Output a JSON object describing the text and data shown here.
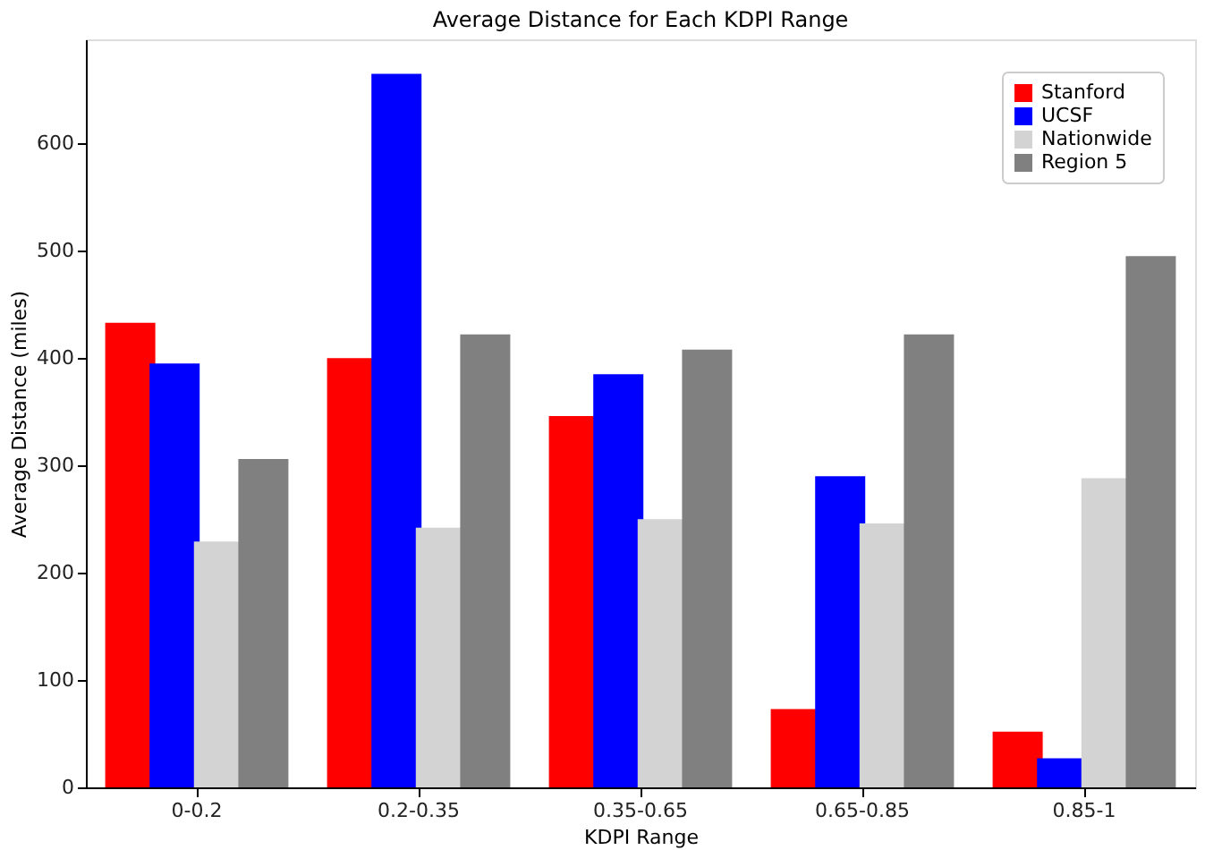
{
  "chart_data": {
    "type": "bar",
    "title": "Average Distance for Each KDPI Range",
    "xlabel": "KDPI Range",
    "ylabel": "Average Distance (miles)",
    "categories": [
      "0-0.2",
      "0.2-0.35",
      "0.35-0.65",
      "0.65-0.85",
      "0.85-1"
    ],
    "series": [
      {
        "name": "Stanford",
        "color": "#ff0000",
        "values": [
          433,
          400,
          346,
          73,
          52
        ]
      },
      {
        "name": "UCSF",
        "color": "#0000ff",
        "values": [
          395,
          665,
          385,
          290,
          27
        ]
      },
      {
        "name": "Nationwide",
        "color": "#d3d3d3",
        "values": [
          229,
          242,
          250,
          246,
          288
        ]
      },
      {
        "name": "Region 5",
        "color": "#808080",
        "values": [
          306,
          422,
          408,
          422,
          495
        ]
      }
    ],
    "ylim": [
      0,
      697
    ],
    "yticks": [
      0,
      100,
      200,
      300,
      400,
      500,
      600
    ],
    "grid": false,
    "legend": "top right"
  }
}
